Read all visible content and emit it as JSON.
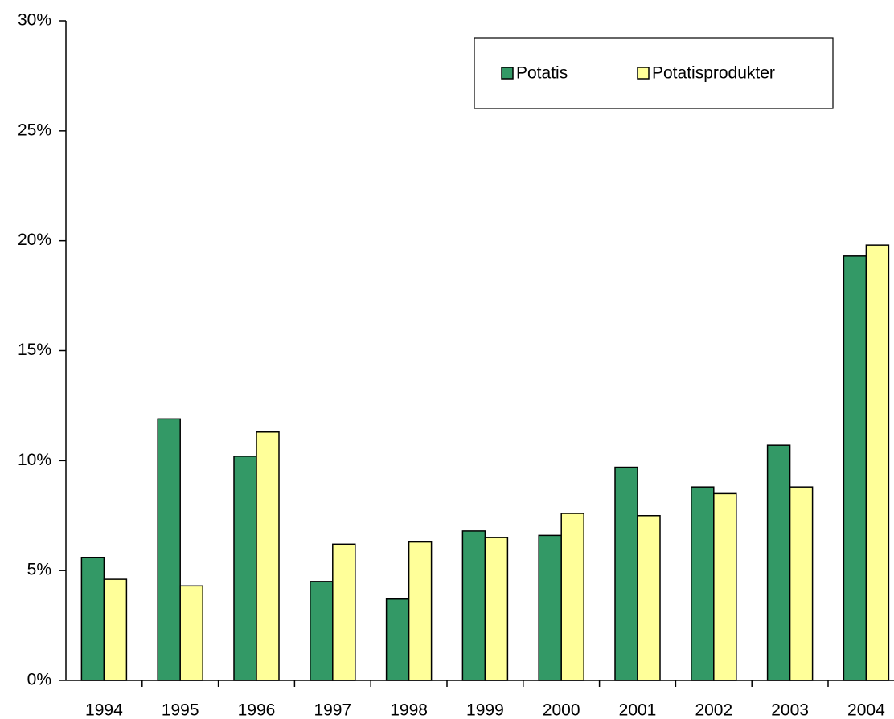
{
  "chart_data": {
    "type": "bar",
    "categories": [
      "1994",
      "1995",
      "1996",
      "1997",
      "1998",
      "1999",
      "2000",
      "2001",
      "2002",
      "2003",
      "2004"
    ],
    "series": [
      {
        "name": "Potatis",
        "color": "#339966",
        "values": [
          5.6,
          11.9,
          10.2,
          4.5,
          3.7,
          6.8,
          6.6,
          9.7,
          8.8,
          10.7,
          19.3
        ]
      },
      {
        "name": "Potatisprodukter",
        "color": "#ffff99",
        "values": [
          4.6,
          4.3,
          11.3,
          6.2,
          6.3,
          6.5,
          7.6,
          7.5,
          8.5,
          8.8,
          19.8
        ]
      }
    ],
    "ylim": [
      0,
      30
    ],
    "yticks": [
      {
        "value": 0,
        "label": "0%"
      },
      {
        "value": 5,
        "label": "5%"
      },
      {
        "value": 10,
        "label": "10%"
      },
      {
        "value": 15,
        "label": "15%"
      },
      {
        "value": 20,
        "label": "20%"
      },
      {
        "value": 25,
        "label": "25%"
      },
      {
        "value": 30,
        "label": "30%"
      }
    ],
    "grid": false,
    "legend": "top-right"
  }
}
